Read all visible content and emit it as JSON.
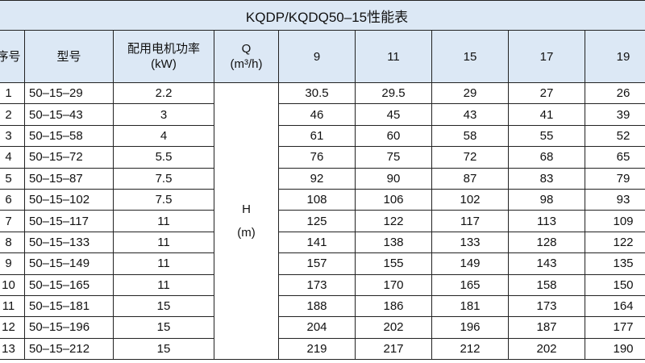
{
  "table": {
    "title": "KQDP/KQDQ50–15性能表",
    "header": {
      "no": "序号",
      "model": "型号",
      "power": [
        "配用电机功率",
        "(kW)"
      ],
      "q": [
        "Q",
        "(m³/h)"
      ],
      "flows": [
        9,
        11,
        15,
        17,
        19
      ]
    },
    "h": [
      "H",
      "(m)"
    ],
    "rows": [
      {
        "no": 1,
        "model": "50–15–29",
        "power": 2.2,
        "heads": [
          30.5,
          29.5,
          29,
          27,
          26
        ]
      },
      {
        "no": 2,
        "model": "50–15–43",
        "power": 3,
        "heads": [
          46,
          45,
          43,
          41,
          39
        ]
      },
      {
        "no": 3,
        "model": "50–15–58",
        "power": 4,
        "heads": [
          61,
          60,
          58,
          55,
          52
        ]
      },
      {
        "no": 4,
        "model": "50–15–72",
        "power": 5.5,
        "heads": [
          76,
          75,
          72,
          68,
          65
        ]
      },
      {
        "no": 5,
        "model": "50–15–87",
        "power": 7.5,
        "heads": [
          92,
          90,
          87,
          83,
          79
        ]
      },
      {
        "no": 6,
        "model": "50–15–102",
        "power": 7.5,
        "heads": [
          108,
          106,
          102,
          98,
          93
        ]
      },
      {
        "no": 7,
        "model": "50–15–117",
        "power": 11,
        "heads": [
          125,
          122,
          117,
          113,
          109
        ]
      },
      {
        "no": 8,
        "model": "50–15–133",
        "power": 11,
        "heads": [
          141,
          138,
          133,
          128,
          122
        ]
      },
      {
        "no": 9,
        "model": "50–15–149",
        "power": 11,
        "heads": [
          157,
          155,
          149,
          143,
          135
        ]
      },
      {
        "no": 10,
        "model": "50–15–165",
        "power": 11,
        "heads": [
          173,
          170,
          165,
          158,
          150
        ]
      },
      {
        "no": 11,
        "model": "50–15–181",
        "power": 15,
        "heads": [
          188,
          186,
          181,
          173,
          164
        ]
      },
      {
        "no": 12,
        "model": "50–15–196",
        "power": 15,
        "heads": [
          204,
          202,
          196,
          187,
          177
        ]
      },
      {
        "no": 13,
        "model": "50–15–212",
        "power": 15,
        "heads": [
          219,
          217,
          212,
          202,
          190
        ]
      }
    ]
  }
}
